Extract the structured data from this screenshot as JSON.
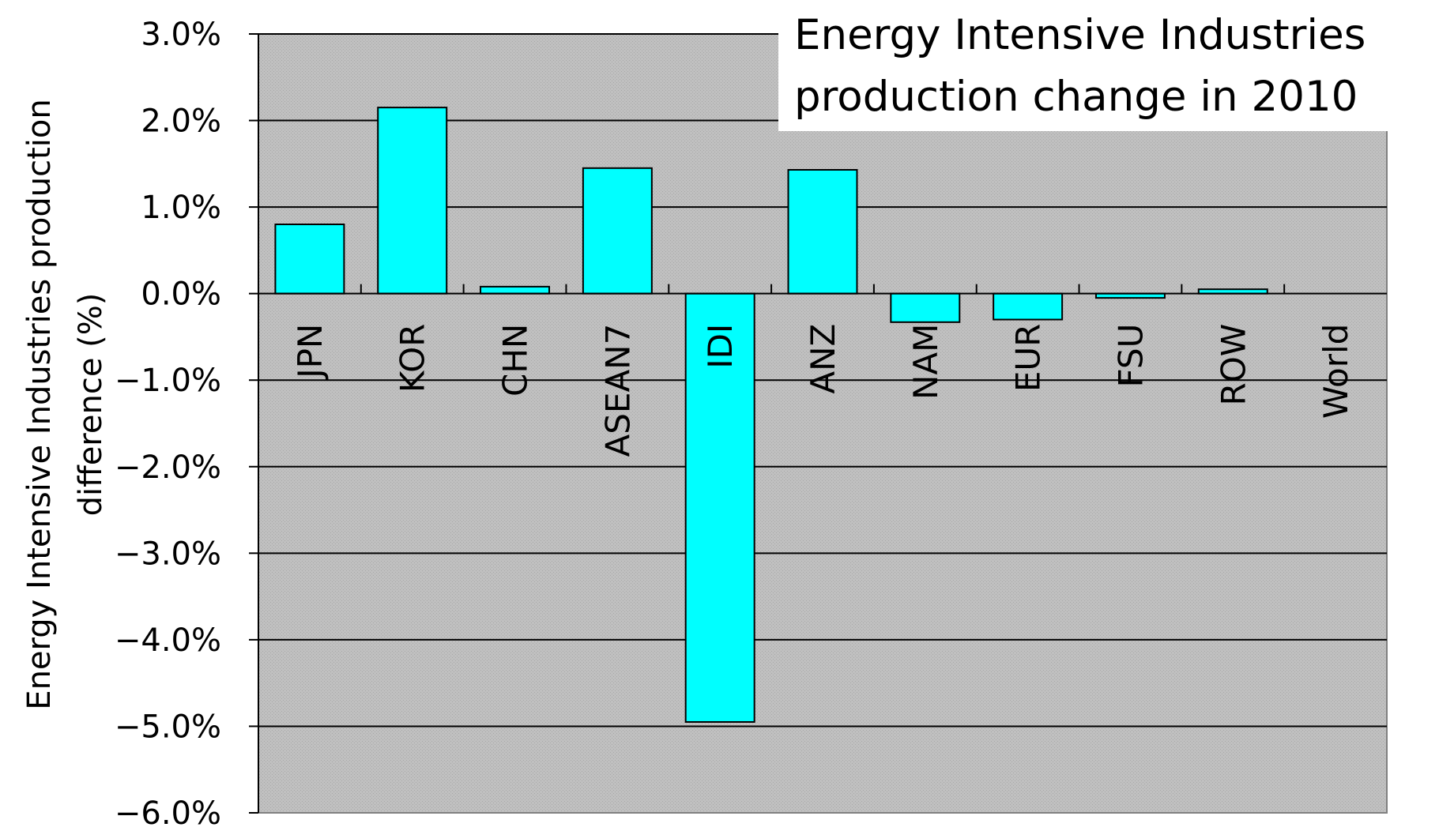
{
  "chart_data": {
    "type": "bar",
    "title_lines": [
      "Energy Intensive Industries",
      "production change in 2010"
    ],
    "ylabel_lines": [
      "Energy Intensive Industries production",
      "difference (%)"
    ],
    "xlabel": "",
    "categories": [
      "JPN",
      "KOR",
      "CHN",
      "ASEAN7",
      "IDI",
      "ANZ",
      "NAM",
      "EUR",
      "FSU",
      "ROW",
      "World"
    ],
    "values": [
      0.8,
      2.15,
      0.08,
      1.45,
      -4.95,
      1.43,
      -0.33,
      -0.3,
      -0.05,
      0.05,
      0.0
    ],
    "ylim": [
      -6.0,
      3.0
    ],
    "yticks": [
      3.0,
      2.0,
      1.0,
      0.0,
      -1.0,
      -2.0,
      -3.0,
      -4.0,
      -5.0,
      -6.0
    ],
    "ytick_labels": [
      "3.0%",
      "2.0%",
      "1.0%",
      "0.0%",
      "−1.0%",
      "−2.0%",
      "−3.0%",
      "−4.0%",
      "−5.0%",
      "−6.0%"
    ],
    "grid": true,
    "legend": "none",
    "colors": {
      "bar_fill": "#00ffff",
      "bar_stroke": "#000000",
      "plot_background": "#c0c0c0",
      "gridline": "#000000"
    }
  }
}
